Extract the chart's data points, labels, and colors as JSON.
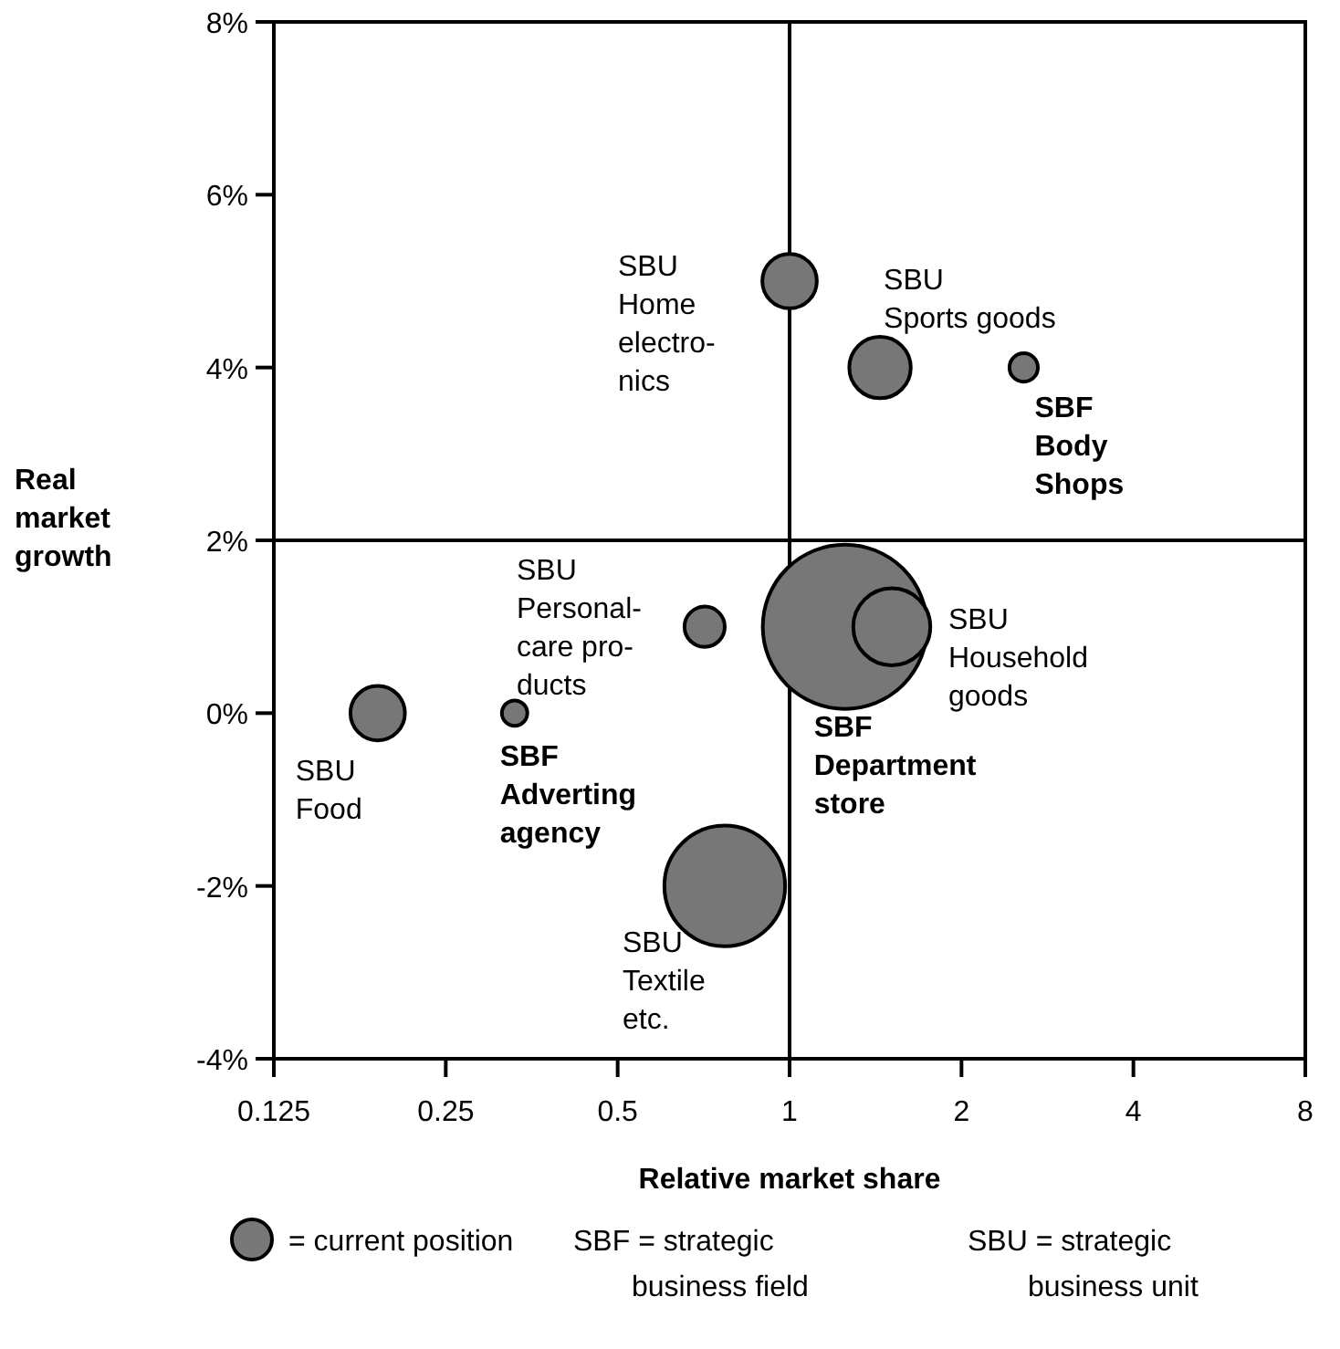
{
  "chart_data": {
    "type": "bubble",
    "xlabel": "Relative market share",
    "ylabel": "Real\nmarket\ngrowth",
    "log": "x",
    "xlim": [
      0.125,
      8
    ],
    "xticks": [
      0.125,
      0.25,
      0.5,
      1,
      2,
      4,
      8
    ],
    "ylim": [
      -4,
      8
    ],
    "yticks": [
      {
        "value": -4,
        "label": "-4%"
      },
      {
        "value": -2,
        "label": "-2%"
      },
      {
        "value": 0,
        "label": "0%"
      },
      {
        "value": 2,
        "label": "2%"
      },
      {
        "value": 4,
        "label": "4%"
      },
      {
        "value": 6,
        "label": "6%"
      },
      {
        "value": 8,
        "label": "8%"
      }
    ],
    "grid": false,
    "series": [
      {
        "color": "#777777",
        "x": [
          1,
          1.44,
          1.51,
          0.71,
          0.19,
          0.77
        ],
        "values": [
          5,
          4,
          1,
          1,
          0,
          -2
        ],
        "sizes": [
          0.11,
          0.14,
          0.22,
          0.06,
          0.11,
          0.54
        ]
      },
      {
        "color": "#777777",
        "x": [
          2.57,
          1.25,
          0.33
        ],
        "values": [
          4,
          1,
          0
        ],
        "sizes": [
          0.03,
          1,
          0.024
        ]
      }
    ],
    "ref_lines": [
      {
        "axis": "x",
        "value": 1,
        "color": "#000000"
      },
      {
        "axis": "y",
        "value": 2,
        "color": "#000000"
      }
    ],
    "annotations": [
      {
        "text": "SBU\nHome\nelectro-\nnics",
        "x": 1,
        "y": 5
      },
      {
        "text": "SBU\nSports goods",
        "x": 1.44,
        "y": 4
      },
      {
        "text": "SBF\nBody\nShops",
        "x": 2.57,
        "y": 4
      },
      {
        "text": "SBU\nPersonal-\ncare pro-\nducts",
        "x": 0.71,
        "y": 1
      },
      {
        "text": "SBU\nHousehold\ngoods",
        "x": 1.51,
        "y": 1
      },
      {
        "text": "SBF\nDepartment\nstore",
        "x": 1.25,
        "y": 1
      },
      {
        "text": "SBU\nFood",
        "x": 0.19,
        "y": 0
      },
      {
        "text": "SBF\nAdverting\nagency",
        "x": 0.33,
        "y": 0
      },
      {
        "text": "SBU\nTextile\netc.",
        "x": 0.77,
        "y": -2
      },
      "= current position",
      "SBF = strategic\nbusiness field",
      "SBU = strategic\nbusiness unit"
    ]
  }
}
